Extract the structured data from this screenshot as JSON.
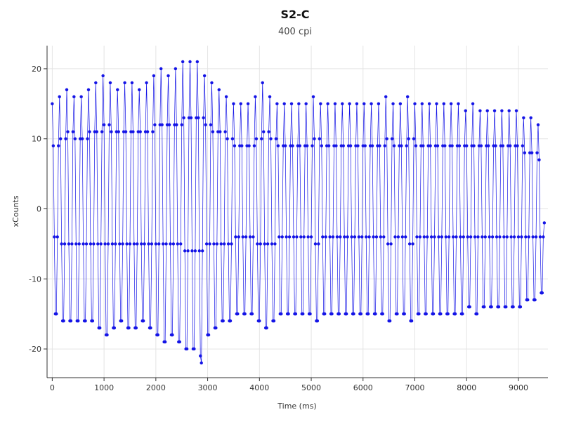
{
  "chart_data": {
    "type": "line",
    "title": "S2-C",
    "subtitle": "400 cpi",
    "x_label": "Time (ms)",
    "y_label": "xCounts",
    "color": "#1414e6",
    "grid": true,
    "xlim": [
      -100,
      9570
    ],
    "ylim": [
      -24.1,
      23.3
    ],
    "xticks": [
      0,
      1000,
      2000,
      3000,
      4000,
      5000,
      6000,
      7000,
      8000,
      9000
    ],
    "yticks": [
      -20,
      -10,
      0,
      10,
      20
    ],
    "x": [
      0,
      20,
      40,
      60,
      80,
      100,
      120,
      140,
      160,
      180,
      200,
      220,
      240,
      260,
      280,
      300,
      320,
      340,
      360,
      380,
      400,
      420,
      440,
      460,
      480,
      500,
      520,
      540,
      560,
      580,
      600,
      620,
      640,
      660,
      680,
      700,
      720,
      740,
      760,
      780,
      800,
      820,
      840,
      860,
      880,
      900,
      920,
      940,
      960,
      980,
      1000,
      1020,
      1040,
      1060,
      1080,
      1100,
      1120,
      1140,
      1160,
      1180,
      1200,
      1220,
      1240,
      1260,
      1280,
      1300,
      1320,
      1340,
      1360,
      1380,
      1400,
      1420,
      1440,
      1460,
      1480,
      1500,
      1520,
      1540,
      1560,
      1580,
      1600,
      1620,
      1640,
      1660,
      1680,
      1700,
      1720,
      1740,
      1760,
      1780,
      1800,
      1820,
      1840,
      1860,
      1880,
      1900,
      1920,
      1940,
      1960,
      1980,
      2000,
      2020,
      2040,
      2060,
      2080,
      2100,
      2120,
      2140,
      2160,
      2180,
      2200,
      2220,
      2240,
      2260,
      2280,
      2300,
      2320,
      2340,
      2360,
      2380,
      2400,
      2420,
      2440,
      2460,
      2480,
      2500,
      2520,
      2540,
      2560,
      2580,
      2600,
      2620,
      2640,
      2660,
      2680,
      2700,
      2720,
      2740,
      2760,
      2780,
      2800,
      2820,
      2840,
      2860,
      2880,
      2900,
      2920,
      2940,
      2960,
      2980,
      3000,
      3020,
      3040,
      3060,
      3080,
      3100,
      3120,
      3140,
      3160,
      3180,
      3200,
      3220,
      3240,
      3260,
      3280,
      3300,
      3320,
      3340,
      3360,
      3380,
      3400,
      3420,
      3440,
      3460,
      3480,
      3500,
      3520,
      3540,
      3560,
      3580,
      3600,
      3620,
      3640,
      3660,
      3680,
      3700,
      3720,
      3740,
      3760,
      3780,
      3800,
      3820,
      3840,
      3860,
      3880,
      3900,
      3920,
      3940,
      3960,
      3980,
      4000,
      4020,
      4040,
      4060,
      4080,
      4100,
      4120,
      4140,
      4160,
      4180,
      4200,
      4220,
      4240,
      4260,
      4280,
      4300,
      4320,
      4340,
      4360,
      4380,
      4400,
      4420,
      4440,
      4460,
      4480,
      4500,
      4520,
      4540,
      4560,
      4580,
      4600,
      4620,
      4640,
      4660,
      4680,
      4700,
      4720,
      4740,
      4760,
      4780,
      4800,
      4820,
      4840,
      4860,
      4880,
      4900,
      4920,
      4940,
      4960,
      4980,
      5000,
      5020,
      5040,
      5060,
      5080,
      5100,
      5120,
      5140,
      5160,
      5180,
      5200,
      5220,
      5240,
      5260,
      5280,
      5300,
      5320,
      5340,
      5360,
      5380,
      5400,
      5420,
      5440,
      5460,
      5480,
      5500,
      5520,
      5540,
      5560,
      5580,
      5600,
      5620,
      5640,
      5660,
      5680,
      5700,
      5720,
      5740,
      5760,
      5780,
      5800,
      5820,
      5840,
      5860,
      5880,
      5900,
      5920,
      5940,
      5960,
      5980,
      6000,
      6020,
      6040,
      6060,
      6080,
      6100,
      6120,
      6140,
      6160,
      6180,
      6200,
      6220,
      6240,
      6260,
      6280,
      6300,
      6320,
      6340,
      6360,
      6380,
      6400,
      6420,
      6440,
      6460,
      6480,
      6500,
      6520,
      6540,
      6560,
      6580,
      6600,
      6620,
      6640,
      6660,
      6680,
      6700,
      6720,
      6740,
      6760,
      6780,
      6800,
      6820,
      6840,
      6860,
      6880,
      6900,
      6920,
      6940,
      6960,
      6980,
      7000,
      7020,
      7040,
      7060,
      7080,
      7100,
      7120,
      7140,
      7160,
      7180,
      7200,
      7220,
      7240,
      7260,
      7280,
      7300,
      7320,
      7340,
      7360,
      7380,
      7400,
      7420,
      7440,
      7460,
      7480,
      7500,
      7520,
      7540,
      7560,
      7580,
      7600,
      7620,
      7640,
      7660,
      7680,
      7700,
      7720,
      7740,
      7760,
      7780,
      7800,
      7820,
      7840,
      7860,
      7880,
      7900,
      7920,
      7940,
      7960,
      7980,
      8000,
      8020,
      8040,
      8060,
      8080,
      8100,
      8120,
      8140,
      8160,
      8180,
      8200,
      8220,
      8240,
      8260,
      8280,
      8300,
      8320,
      8340,
      8360,
      8380,
      8400,
      8420,
      8440,
      8460,
      8480,
      8500,
      8520,
      8540,
      8560,
      8580,
      8600,
      8620,
      8640,
      8660,
      8680,
      8700,
      8720,
      8740,
      8760,
      8780,
      8800,
      8820,
      8840,
      8860,
      8880,
      8900,
      8920,
      8940,
      8960,
      8980,
      9000,
      9020,
      9040,
      9060,
      9080,
      9100,
      9120,
      9140,
      9160,
      9180,
      9200,
      9220,
      9240,
      9260,
      9280,
      9300,
      9320,
      9340,
      9360,
      9380,
      9400,
      9420,
      9440,
      9460,
      9480,
      9500
    ],
    "values": [
      15,
      9,
      -4,
      -15,
      -15,
      -4,
      9,
      16,
      10,
      -5,
      -16,
      -16,
      -5,
      10,
      17,
      11,
      -5,
      -16,
      -16,
      -5,
      11,
      16,
      10,
      -5,
      -16,
      -16,
      -5,
      10,
      16,
      10,
      -5,
      -16,
      -16,
      -5,
      10,
      17,
      11,
      -5,
      -16,
      -16,
      -5,
      11,
      18,
      11,
      -5,
      -17,
      -17,
      -5,
      11,
      19,
      12,
      -5,
      -18,
      -18,
      -5,
      12,
      18,
      11,
      -5,
      -17,
      -17,
      -5,
      11,
      17,
      11,
      -5,
      -16,
      -16,
      -5,
      11,
      18,
      11,
      -5,
      -17,
      -17,
      -5,
      11,
      18,
      11,
      -5,
      -17,
      -17,
      -5,
      11,
      17,
      11,
      -5,
      -16,
      -16,
      -5,
      11,
      18,
      11,
      -5,
      -17,
      -17,
      -5,
      11,
      19,
      12,
      -5,
      -18,
      -18,
      -5,
      12,
      20,
      12,
      -5,
      -19,
      -19,
      -5,
      12,
      19,
      12,
      -5,
      -18,
      -18,
      -5,
      12,
      20,
      12,
      -5,
      -19,
      -19,
      -5,
      12,
      21,
      13,
      -6,
      -20,
      -20,
      -6,
      13,
      21,
      13,
      -6,
      -20,
      -20,
      -6,
      13,
      21,
      13,
      -6,
      -21,
      -22,
      -6,
      13,
      19,
      12,
      -5,
      -18,
      -18,
      -5,
      12,
      18,
      11,
      -5,
      -17,
      -17,
      -5,
      11,
      17,
      11,
      -5,
      -16,
      -16,
      -5,
      11,
      16,
      10,
      -5,
      -16,
      -16,
      -5,
      10,
      15,
      9,
      -4,
      -15,
      -15,
      -4,
      9,
      15,
      9,
      -4,
      -15,
      -15,
      -4,
      9,
      15,
      9,
      -4,
      -15,
      -15,
      -4,
      9,
      16,
      10,
      -5,
      -16,
      -16,
      -5,
      10,
      18,
      11,
      -5,
      -17,
      -17,
      -5,
      11,
      16,
      10,
      -5,
      -16,
      -16,
      -5,
      10,
      15,
      9,
      -4,
      -15,
      -15,
      -4,
      9,
      15,
      9,
      -4,
      -15,
      -15,
      -4,
      9,
      15,
      9,
      -4,
      -15,
      -15,
      -4,
      9,
      15,
      9,
      -4,
      -15,
      -15,
      -4,
      9,
      15,
      9,
      -4,
      -15,
      -15,
      -4,
      9,
      16,
      10,
      -5,
      -16,
      -16,
      -5,
      10,
      15,
      9,
      -4,
      -15,
      -15,
      -4,
      9,
      15,
      9,
      -4,
      -15,
      -15,
      -4,
      9,
      15,
      9,
      -4,
      -15,
      -15,
      -4,
      9,
      15,
      9,
      -4,
      -15,
      -15,
      -4,
      9,
      15,
      9,
      -4,
      -15,
      -15,
      -4,
      9,
      15,
      9,
      -4,
      -15,
      -15,
      -4,
      9,
      15,
      9,
      -4,
      -15,
      -15,
      -4,
      9,
      15,
      9,
      -4,
      -15,
      -15,
      -4,
      9,
      15,
      9,
      -4,
      -15,
      -15,
      -4,
      9,
      16,
      10,
      -5,
      -16,
      -16,
      -5,
      10,
      15,
      9,
      -4,
      -15,
      -15,
      -4,
      9,
      15,
      9,
      -4,
      -15,
      -15,
      -4,
      9,
      16,
      10,
      -5,
      -16,
      -16,
      -5,
      10,
      15,
      9,
      -4,
      -15,
      -15,
      -4,
      9,
      15,
      9,
      -4,
      -15,
      -15,
      -4,
      9,
      15,
      9,
      -4,
      -15,
      -15,
      -4,
      9,
      15,
      9,
      -4,
      -15,
      -15,
      -4,
      9,
      15,
      9,
      -4,
      -15,
      -15,
      -4,
      9,
      15,
      9,
      -4,
      -15,
      -15,
      -4,
      9,
      15,
      9,
      -4,
      -15,
      -15,
      -4,
      9,
      14,
      9,
      -4,
      -14,
      -14,
      -4,
      9,
      15,
      9,
      -4,
      -15,
      -15,
      -4,
      9,
      14,
      9,
      -4,
      -14,
      -14,
      -4,
      9,
      14,
      9,
      -4,
      -14,
      -14,
      -4,
      9,
      14,
      9,
      -4,
      -14,
      -14,
      -4,
      9,
      14,
      9,
      -4,
      -14,
      -14,
      -4,
      9,
      14,
      9,
      -4,
      -14,
      -14,
      -4,
      9,
      14,
      9,
      -4,
      -14,
      -14,
      -4,
      9,
      13,
      8,
      -4,
      -13,
      -13,
      -4,
      8,
      13,
      8,
      -4,
      -13,
      -13,
      -4,
      8,
      12,
      7,
      -4,
      -12,
      -12,
      -4,
      -2
    ]
  }
}
